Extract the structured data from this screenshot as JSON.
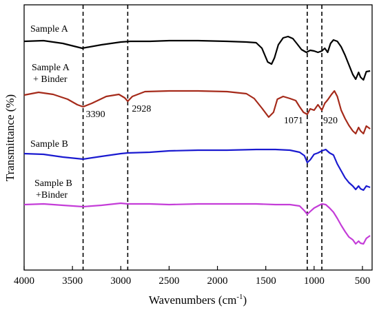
{
  "chart_data": {
    "type": "line",
    "xlabel": "Wavenumbers (cm",
    "xlabel_sup": "-1",
    "xlabel_end": ")",
    "ylabel": "Transmittance (%)",
    "xlim": [
      4000,
      400
    ],
    "x_reversed": true,
    "xticks": [
      4000,
      3500,
      3000,
      2500,
      2000,
      1500,
      1000,
      500
    ],
    "y_ticks_shown": false,
    "grid": false,
    "reference_lines": [
      {
        "x": 3390,
        "label": "3390"
      },
      {
        "x": 2928,
        "label": "2928"
      },
      {
        "x": 1071,
        "label": "1071"
      },
      {
        "x": 920,
        "label": "920"
      }
    ],
    "series": [
      {
        "name": "Sample A",
        "color": "#000000",
        "points": [
          [
            4000,
            60
          ],
          [
            3800,
            59
          ],
          [
            3600,
            63
          ],
          [
            3400,
            70
          ],
          [
            3200,
            65
          ],
          [
            3000,
            61
          ],
          [
            2900,
            60
          ],
          [
            2700,
            60
          ],
          [
            2500,
            59
          ],
          [
            2200,
            59
          ],
          [
            1900,
            60
          ],
          [
            1700,
            61
          ],
          [
            1600,
            62
          ],
          [
            1540,
            70
          ],
          [
            1480,
            90
          ],
          [
            1440,
            93
          ],
          [
            1410,
            84
          ],
          [
            1370,
            65
          ],
          [
            1320,
            55
          ],
          [
            1270,
            53
          ],
          [
            1220,
            56
          ],
          [
            1180,
            63
          ],
          [
            1130,
            72
          ],
          [
            1080,
            76
          ],
          [
            1040,
            73
          ],
          [
            1000,
            74
          ],
          [
            960,
            76
          ],
          [
            920,
            74
          ],
          [
            890,
            70
          ],
          [
            860,
            76
          ],
          [
            830,
            63
          ],
          [
            800,
            58
          ],
          [
            760,
            60
          ],
          [
            720,
            68
          ],
          [
            680,
            80
          ],
          [
            640,
            94
          ],
          [
            600,
            108
          ],
          [
            570,
            115
          ],
          [
            540,
            105
          ],
          [
            520,
            112
          ],
          [
            490,
            116
          ],
          [
            460,
            104
          ],
          [
            420,
            103
          ]
        ]
      },
      {
        "name": "Sample A\n+ Binder",
        "color": "#a52a1a",
        "points": [
          [
            4000,
            138
          ],
          [
            3850,
            134
          ],
          [
            3700,
            137
          ],
          [
            3550,
            144
          ],
          [
            3450,
            152
          ],
          [
            3390,
            155
          ],
          [
            3300,
            150
          ],
          [
            3150,
            140
          ],
          [
            3020,
            137
          ],
          [
            2960,
            142
          ],
          [
            2928,
            147
          ],
          [
            2880,
            140
          ],
          [
            2750,
            133
          ],
          [
            2500,
            132
          ],
          [
            2200,
            132
          ],
          [
            1900,
            133
          ],
          [
            1700,
            136
          ],
          [
            1620,
            143
          ],
          [
            1540,
            157
          ],
          [
            1470,
            170
          ],
          [
            1420,
            163
          ],
          [
            1380,
            144
          ],
          [
            1320,
            140
          ],
          [
            1250,
            143
          ],
          [
            1190,
            146
          ],
          [
            1150,
            155
          ],
          [
            1110,
            163
          ],
          [
            1071,
            166
          ],
          [
            1040,
            158
          ],
          [
            1000,
            160
          ],
          [
            960,
            152
          ],
          [
            920,
            160
          ],
          [
            890,
            150
          ],
          [
            860,
            145
          ],
          [
            820,
            137
          ],
          [
            790,
            132
          ],
          [
            760,
            140
          ],
          [
            720,
            160
          ],
          [
            680,
            172
          ],
          [
            640,
            182
          ],
          [
            600,
            190
          ],
          [
            570,
            194
          ],
          [
            540,
            185
          ],
          [
            520,
            190
          ],
          [
            490,
            194
          ],
          [
            460,
            183
          ],
          [
            420,
            187
          ]
        ]
      },
      {
        "name": "Sample B",
        "color": "#1a1ad0",
        "points": [
          [
            4000,
            223
          ],
          [
            3800,
            224
          ],
          [
            3600,
            228
          ],
          [
            3390,
            231
          ],
          [
            3200,
            227
          ],
          [
            3000,
            223
          ],
          [
            2928,
            222
          ],
          [
            2700,
            221
          ],
          [
            2500,
            219
          ],
          [
            2200,
            218
          ],
          [
            1900,
            218
          ],
          [
            1600,
            217
          ],
          [
            1400,
            217
          ],
          [
            1250,
            218
          ],
          [
            1150,
            221
          ],
          [
            1100,
            226
          ],
          [
            1071,
            236
          ],
          [
            1040,
            232
          ],
          [
            1000,
            224
          ],
          [
            960,
            222
          ],
          [
            920,
            219
          ],
          [
            880,
            217
          ],
          [
            840,
            222
          ],
          [
            800,
            225
          ],
          [
            760,
            238
          ],
          [
            720,
            248
          ],
          [
            680,
            258
          ],
          [
            640,
            265
          ],
          [
            600,
            270
          ],
          [
            570,
            275
          ],
          [
            540,
            270
          ],
          [
            520,
            274
          ],
          [
            490,
            276
          ],
          [
            460,
            270
          ],
          [
            420,
            272
          ]
        ]
      },
      {
        "name": "Sample B\n+Binder",
        "color": "#c43cd8",
        "points": [
          [
            4000,
            297
          ],
          [
            3800,
            296
          ],
          [
            3600,
            298
          ],
          [
            3390,
            300
          ],
          [
            3200,
            298
          ],
          [
            3000,
            295
          ],
          [
            2928,
            296
          ],
          [
            2700,
            296
          ],
          [
            2500,
            297
          ],
          [
            2200,
            296
          ],
          [
            1900,
            296
          ],
          [
            1600,
            296
          ],
          [
            1400,
            297
          ],
          [
            1250,
            297
          ],
          [
            1150,
            299
          ],
          [
            1100,
            306
          ],
          [
            1071,
            311
          ],
          [
            1040,
            307
          ],
          [
            1000,
            302
          ],
          [
            960,
            299
          ],
          [
            920,
            296
          ],
          [
            880,
            297
          ],
          [
            840,
            302
          ],
          [
            800,
            308
          ],
          [
            760,
            317
          ],
          [
            720,
            327
          ],
          [
            680,
            336
          ],
          [
            640,
            344
          ],
          [
            600,
            348
          ],
          [
            570,
            354
          ],
          [
            540,
            350
          ],
          [
            520,
            353
          ],
          [
            490,
            354
          ],
          [
            460,
            346
          ],
          [
            420,
            342
          ]
        ]
      }
    ]
  }
}
